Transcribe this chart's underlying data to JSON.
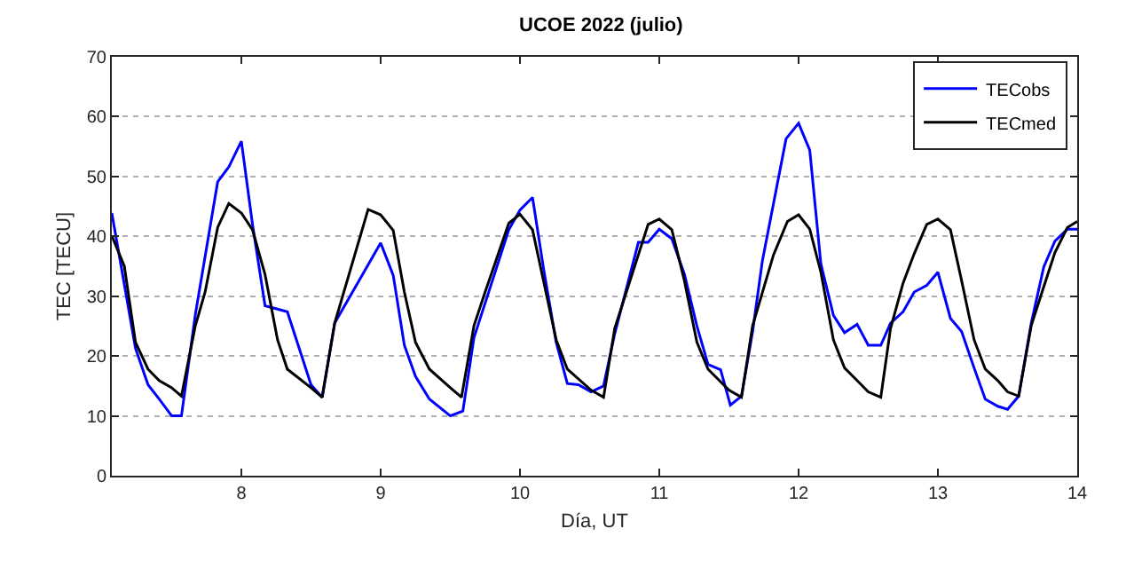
{
  "chart_data": {
    "type": "line",
    "title": "UCOE 2022 (julio)",
    "xlabel": "Día, UT",
    "ylabel": "TEC [TECU]",
    "xlim": [
      7.07,
      14
    ],
    "ylim": [
      0,
      70
    ],
    "xticks": [
      8,
      9,
      10,
      11,
      12,
      13,
      14
    ],
    "yticks": [
      0,
      10,
      20,
      30,
      40,
      50,
      60,
      70
    ],
    "grid": "y",
    "legend": "top right",
    "marker": "none",
    "line_style": "solid",
    "series": [
      {
        "name": "TECobs",
        "color": "#0000ff",
        "x": [
          7.07,
          7.24,
          7.33,
          7.41,
          7.5,
          7.57,
          7.67,
          7.83,
          7.91,
          8.0,
          8.08,
          8.17,
          8.33,
          8.5,
          8.58,
          8.67,
          9.0,
          9.09,
          9.17,
          9.25,
          9.35,
          9.5,
          9.59,
          9.67,
          9.92,
          10.0,
          10.09,
          10.17,
          10.26,
          10.34,
          10.42,
          10.51,
          10.6,
          10.68,
          10.85,
          10.92,
          11.0,
          11.09,
          11.18,
          11.27,
          11.35,
          11.44,
          11.51,
          11.59,
          11.67,
          11.74,
          11.91,
          12.0,
          12.08,
          12.16,
          12.25,
          12.33,
          12.42,
          12.5,
          12.59,
          12.66,
          12.75,
          12.83,
          12.92,
          13.0,
          13.09,
          13.17,
          13.26,
          13.34,
          13.43,
          13.5,
          13.58,
          13.67,
          13.76,
          13.84,
          13.93,
          14.0
        ],
        "values": [
          43.9,
          21.3,
          15.2,
          12.8,
          10,
          10,
          27,
          49.1,
          51.6,
          55.9,
          42,
          28.4,
          27.4,
          15.2,
          13.1,
          25.5,
          38.9,
          33.5,
          21.8,
          16.6,
          12.8,
          10,
          10.8,
          23.1,
          41.1,
          44.4,
          46.5,
          34.5,
          22.3,
          15.4,
          15.2,
          14,
          15,
          23.7,
          39,
          39,
          41.2,
          39.6,
          33.7,
          25,
          18.6,
          17.7,
          11.8,
          13.3,
          24.1,
          35.9,
          56.3,
          58.9,
          54.4,
          35.4,
          26.8,
          23.9,
          25.3,
          21.8,
          21.8,
          25.5,
          27.4,
          30.7,
          31.8,
          34,
          26.3,
          24.1,
          18,
          12.8,
          11.6,
          11.1,
          13.3,
          25.5,
          34.9,
          39.2,
          41.2,
          41.2
        ]
      },
      {
        "name": "TECmed",
        "color": "#000000",
        "x": [
          7.07,
          7.16,
          7.24,
          7.33,
          7.41,
          7.5,
          7.57,
          7.67,
          7.74,
          7.83,
          7.91,
          8.0,
          8.08,
          8.17,
          8.26,
          8.33,
          8.5,
          8.58,
          8.67,
          8.91,
          9.0,
          9.09,
          9.17,
          9.25,
          9.35,
          9.5,
          9.58,
          9.67,
          9.75,
          9.92,
          10.0,
          10.09,
          10.26,
          10.34,
          10.51,
          10.6,
          10.68,
          10.92,
          11.0,
          11.09,
          11.18,
          11.27,
          11.35,
          11.5,
          11.59,
          11.67,
          11.82,
          11.92,
          12.0,
          12.08,
          12.16,
          12.25,
          12.33,
          12.42,
          12.5,
          12.59,
          12.66,
          12.75,
          12.83,
          12.92,
          13.0,
          13.09,
          13.17,
          13.26,
          13.34,
          13.43,
          13.5,
          13.58,
          13.67,
          13.76,
          13.84,
          13.93,
          14.0
        ],
        "values": [
          40.1,
          35,
          22.3,
          17.8,
          15.9,
          14.7,
          13.3,
          25.1,
          30.7,
          41.5,
          45.5,
          43.9,
          41.1,
          33.6,
          22.7,
          17.8,
          14.7,
          13.1,
          25.5,
          44.5,
          43.6,
          41,
          30.7,
          22.3,
          17.8,
          14.7,
          13.1,
          25.1,
          30.7,
          42.2,
          43.7,
          41.1,
          22.7,
          17.8,
          14.3,
          13.1,
          24.6,
          42,
          42.9,
          41.1,
          32.6,
          22.3,
          17.8,
          14.3,
          13.1,
          25.1,
          36.9,
          42.5,
          43.6,
          41.2,
          34,
          22.7,
          18,
          15.9,
          14,
          13.1,
          24.6,
          32.2,
          37.1,
          42,
          42.9,
          41.1,
          32.6,
          22.7,
          17.8,
          15.9,
          14,
          13.3,
          25.1,
          31.6,
          37.3,
          41.5,
          42.5
        ]
      }
    ]
  }
}
